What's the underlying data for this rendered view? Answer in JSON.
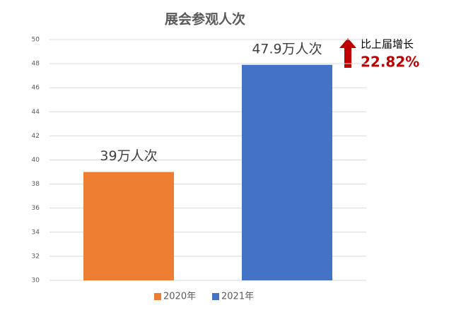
{
  "chart_data": {
    "type": "bar",
    "title": "展会参观人次",
    "categories": [
      null
    ],
    "series": [
      {
        "name": "2020年",
        "color": "#ed7d31",
        "values": [
          39
        ],
        "value_labels": [
          "39万人次"
        ]
      },
      {
        "name": "2021年",
        "color": "#4472c4",
        "values": [
          47.9
        ],
        "value_labels": [
          "47.9万人次"
        ]
      }
    ],
    "ylim": [
      30,
      50
    ],
    "yticks": [
      30,
      32,
      34,
      36,
      38,
      40,
      42,
      44,
      46,
      48,
      50
    ],
    "grid": true,
    "legend": "bottom",
    "annotation": {
      "label": "比上届增长",
      "growth": "22.82%"
    }
  }
}
